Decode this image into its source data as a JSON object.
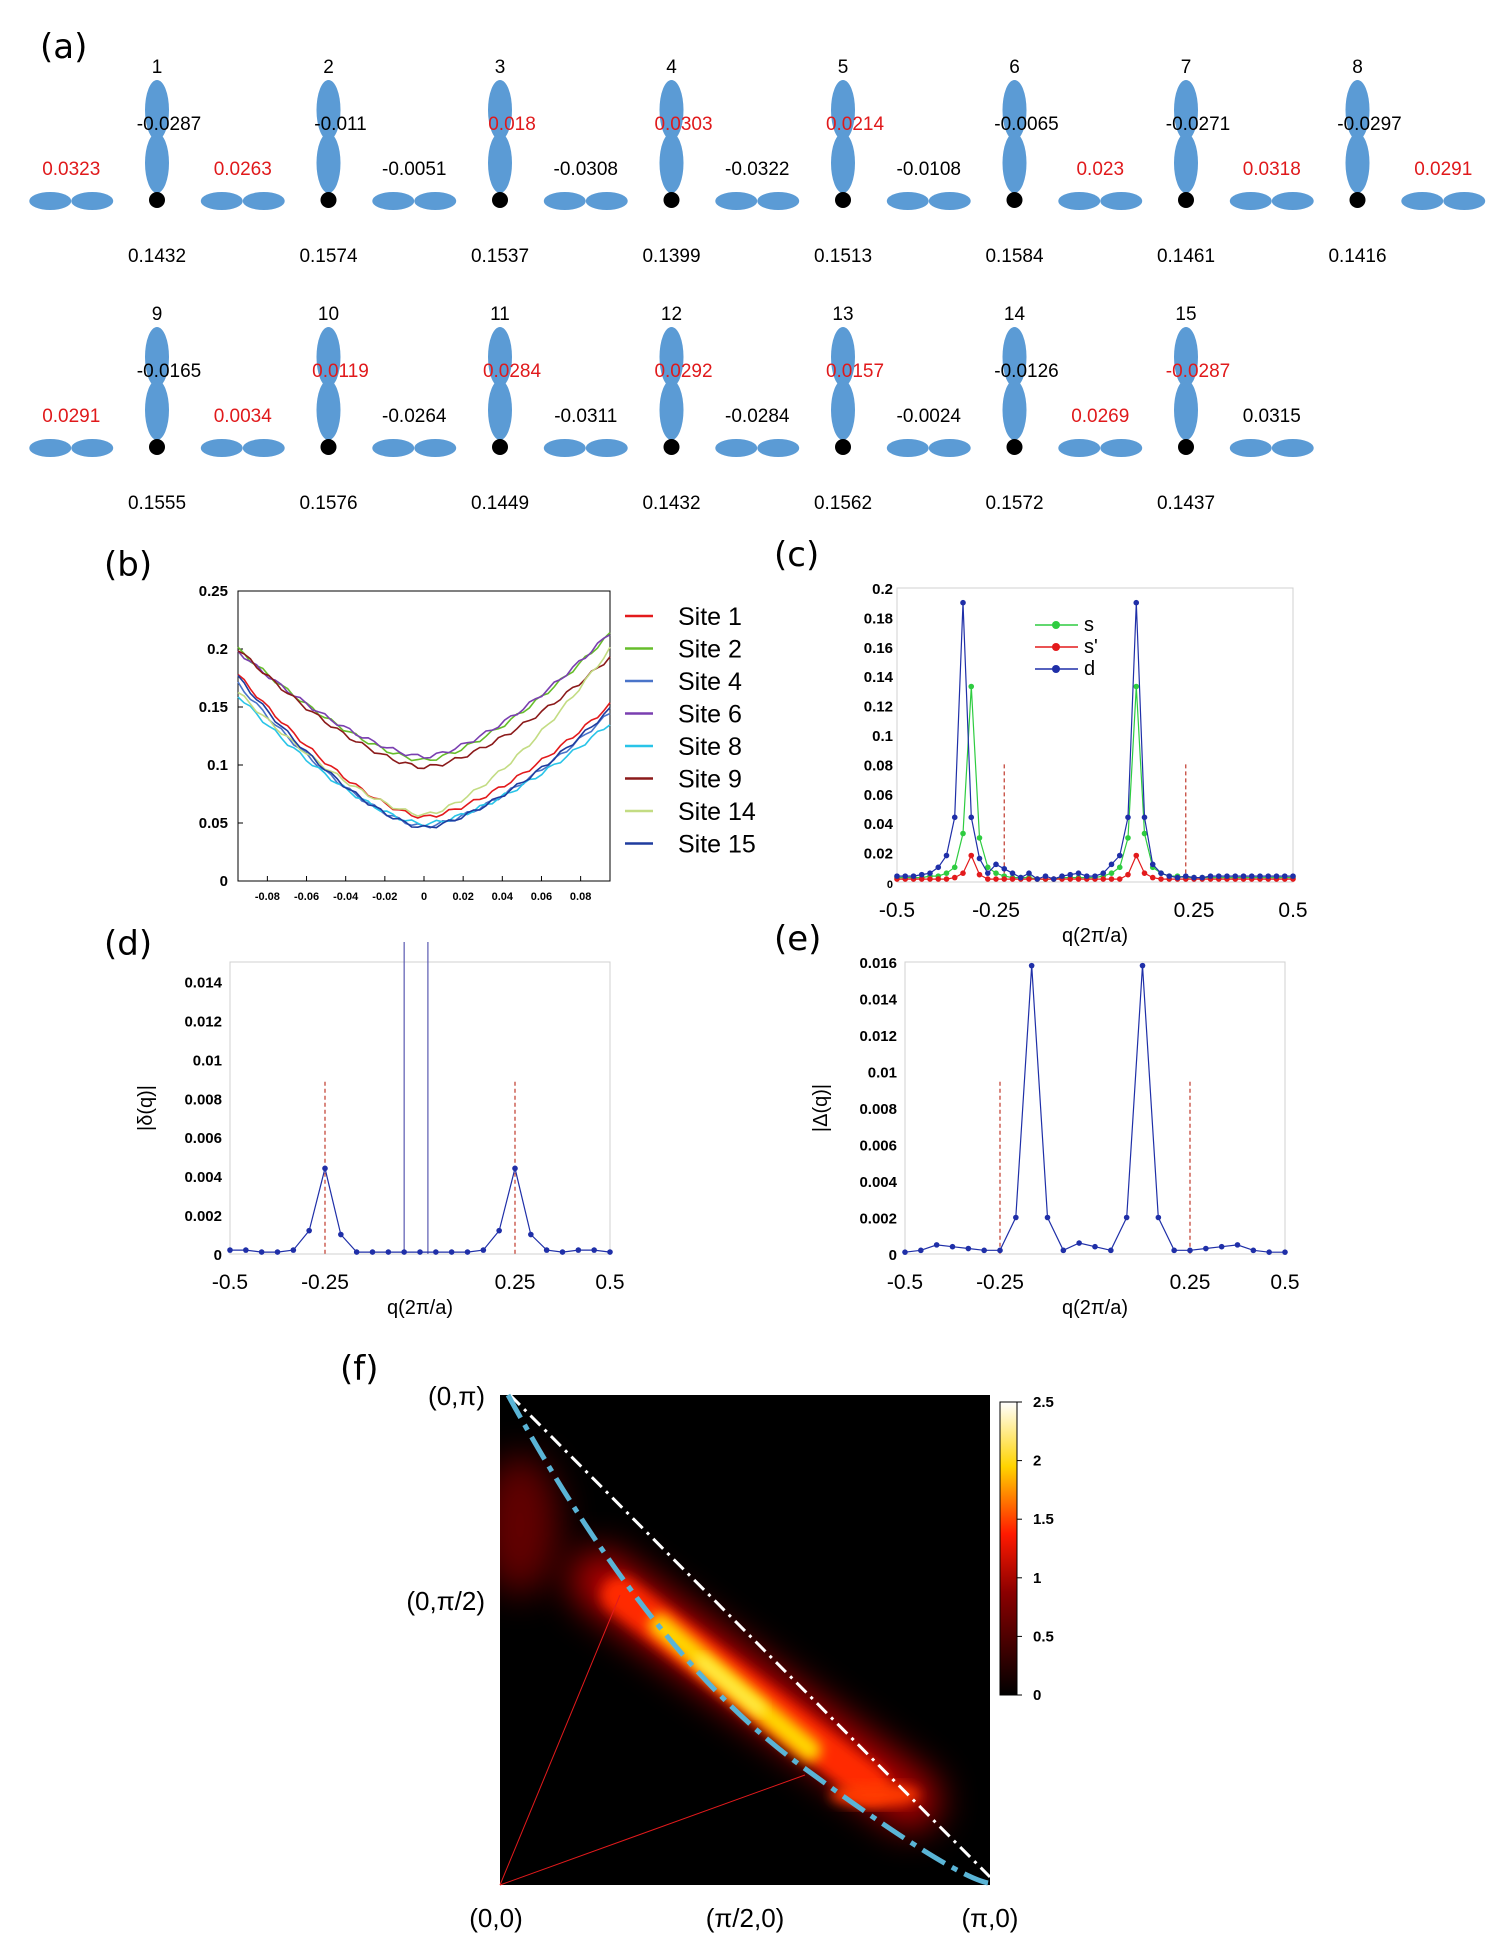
{
  "panel_labels": {
    "a": "(a)",
    "b": "(b)",
    "c": "(c)",
    "d": "(d)",
    "e": "(e)",
    "f": "(f)"
  },
  "panel_a": {
    "rows": [
      {
        "sites": [
          {
            "num": "1",
            "vert": "-0.0287",
            "vert_red": false,
            "onsite": "0.1432"
          },
          {
            "num": "2",
            "vert": "-0.011",
            "vert_red": false,
            "onsite": "0.1574"
          },
          {
            "num": "3",
            "vert": "0.018",
            "vert_red": true,
            "onsite": "0.1537"
          },
          {
            "num": "4",
            "vert": "0.0303",
            "vert_red": true,
            "onsite": "0.1399"
          },
          {
            "num": "5",
            "vert": "0.0214",
            "vert_red": true,
            "onsite": "0.1513"
          },
          {
            "num": "6",
            "vert": "-0.0065",
            "vert_red": false,
            "onsite": "0.1584"
          },
          {
            "num": "7",
            "vert": "-0.0271",
            "vert_red": false,
            "onsite": "0.1461"
          },
          {
            "num": "8",
            "vert": "-0.0297",
            "vert_red": false,
            "onsite": "0.1416"
          }
        ],
        "horiz": [
          {
            "v": "0.0323",
            "red": true
          },
          {
            "v": "0.0263",
            "red": true
          },
          {
            "v": "-0.0051",
            "red": false
          },
          {
            "v": "-0.0308",
            "red": false
          },
          {
            "v": "-0.0322",
            "red": false
          },
          {
            "v": "-0.0108",
            "red": false
          },
          {
            "v": "0.023",
            "red": true
          },
          {
            "v": "0.0318",
            "red": true
          },
          {
            "v": "0.0291",
            "red": true
          }
        ]
      },
      {
        "sites": [
          {
            "num": "9",
            "vert": "-0.0165",
            "vert_red": false,
            "onsite": "0.1555"
          },
          {
            "num": "10",
            "vert": "0.0119",
            "vert_red": true,
            "onsite": "0.1576"
          },
          {
            "num": "11",
            "vert": "0.0284",
            "vert_red": true,
            "onsite": "0.1449"
          },
          {
            "num": "12",
            "vert": "0.0292",
            "vert_red": true,
            "onsite": "0.1432"
          },
          {
            "num": "13",
            "vert": "0.0157",
            "vert_red": true,
            "onsite": "0.1562"
          },
          {
            "num": "14",
            "vert": "-0.0126",
            "vert_red": false,
            "onsite": "0.1572"
          },
          {
            "num": "15",
            "vert": "-0.0287",
            "vert_red": true,
            "onsite": "0.1437"
          }
        ],
        "horiz": [
          {
            "v": "0.0291",
            "red": true
          },
          {
            "v": "0.0034",
            "red": true
          },
          {
            "v": "-0.0264",
            "red": false
          },
          {
            "v": "-0.0311",
            "red": false
          },
          {
            "v": "-0.0284",
            "red": false
          },
          {
            "v": "-0.0024",
            "red": false
          },
          {
            "v": "0.0269",
            "red": true
          },
          {
            "v": "0.0315",
            "red": false
          }
        ]
      }
    ],
    "colors": {
      "orbital": "#5b9bd5",
      "red": "#e0191b",
      "atom": "#000000"
    }
  },
  "chart_data": [
    {
      "id": "b",
      "type": "line",
      "title": "",
      "xlabel": "",
      "ylabel": "",
      "xlim": [
        -0.095,
        0.095
      ],
      "ylim": [
        0,
        0.25
      ],
      "xticks": [
        "-0.08",
        "-0.06",
        "-0.04",
        "-0.02",
        "0",
        "0.02",
        "0.04",
        "0.06",
        "0.08"
      ],
      "yticks": [
        "0",
        "0.05",
        "0.1",
        "0.15",
        "0.2",
        "0.25"
      ],
      "series": [
        {
          "name": "Site 1",
          "color": "#e31a1c",
          "min": 0.055,
          "left": 0.178,
          "right": 0.152
        },
        {
          "name": "Site 2",
          "color": "#66bd2b",
          "min": 0.104,
          "left": 0.2,
          "right": 0.213
        },
        {
          "name": "Site 4",
          "color": "#4a74c9",
          "min": 0.047,
          "left": 0.17,
          "right": 0.145
        },
        {
          "name": "Site 6",
          "color": "#7a3fb0",
          "min": 0.107,
          "left": 0.198,
          "right": 0.214
        },
        {
          "name": "Site 8",
          "color": "#29c4e8",
          "min": 0.049,
          "left": 0.16,
          "right": 0.136
        },
        {
          "name": "Site 9",
          "color": "#8b1a1a",
          "min": 0.098,
          "left": 0.2,
          "right": 0.193
        },
        {
          "name": "Site 14",
          "color": "#c3dc83",
          "min": 0.057,
          "left": 0.163,
          "right": 0.2
        },
        {
          "name": "Site 15",
          "color": "#1f3c9e",
          "min": 0.046,
          "left": 0.176,
          "right": 0.148
        }
      ]
    },
    {
      "id": "c",
      "type": "line",
      "xlabel": "q(2π/a)",
      "ylabel": "",
      "xlim": [
        -0.5,
        0.5
      ],
      "ylim": [
        0,
        0.2
      ],
      "xticks": [
        "-0.5",
        "-0.25",
        "0.25",
        "0.5"
      ],
      "yticks": [
        "0",
        "0.02",
        "0.04",
        "0.06",
        "0.08",
        "0.1",
        "0.12",
        "0.14",
        "0.16",
        "0.18",
        "0.2"
      ],
      "reference_lines": [
        -0.2292,
        0.2292
      ],
      "x": [
        -0.5,
        -0.4792,
        -0.4583,
        -0.4375,
        -0.4167,
        -0.3958,
        -0.375,
        -0.3542,
        -0.3333,
        -0.3125,
        -0.2917,
        -0.2708,
        -0.25,
        -0.2292,
        -0.2083,
        -0.1875,
        -0.1667,
        -0.1458,
        -0.125,
        -0.1042,
        -0.0833,
        -0.0625,
        -0.0417,
        -0.0208,
        0,
        0.0208,
        0.0417,
        0.0625,
        0.0833,
        0.1042,
        0.125,
        0.1458,
        0.1667,
        0.1875,
        0.2083,
        0.2292,
        0.25,
        0.2708,
        0.2917,
        0.3125,
        0.3333,
        0.3542,
        0.375,
        0.3958,
        0.4167,
        0.4375,
        0.4583,
        0.4792,
        0.5
      ],
      "series": [
        {
          "name": "s",
          "color": "#2ecc40",
          "values": [
            0.003,
            0.003,
            0.003,
            0.003,
            0.004,
            0.004,
            0.006,
            0.01,
            0.033,
            0.133,
            0.03,
            0.01,
            0.006,
            0.004,
            0.003,
            0.003,
            0.003,
            0.002,
            0.002,
            0.002,
            0.003,
            0.003,
            0.003,
            0.003,
            0.003,
            0.004,
            0.006,
            0.01,
            0.03,
            0.133,
            0.033,
            0.01,
            0.006,
            0.004,
            0.004,
            0.003,
            0.003,
            0.003,
            0.003,
            0.003,
            0.003,
            0.003,
            0.003,
            0.003,
            0.003,
            0.003,
            0.003,
            0.003,
            0.003
          ]
        },
        {
          "name": "s'",
          "color": "#e31a1c",
          "values": [
            0.002,
            0.002,
            0.002,
            0.002,
            0.002,
            0.002,
            0.002,
            0.003,
            0.006,
            0.018,
            0.005,
            0.002,
            0.002,
            0.002,
            0.002,
            0.002,
            0.002,
            0.002,
            0.002,
            0.002,
            0.002,
            0.002,
            0.002,
            0.002,
            0.002,
            0.002,
            0.002,
            0.002,
            0.005,
            0.018,
            0.006,
            0.003,
            0.002,
            0.002,
            0.002,
            0.002,
            0.002,
            0.002,
            0.002,
            0.002,
            0.002,
            0.002,
            0.002,
            0.002,
            0.002,
            0.002,
            0.002,
            0.002,
            0.002
          ]
        },
        {
          "name": "d",
          "color": "#1f2fa8",
          "values": [
            0.004,
            0.004,
            0.004,
            0.005,
            0.006,
            0.01,
            0.018,
            0.044,
            0.19,
            0.044,
            0.016,
            0.006,
            0.012,
            0.009,
            0.006,
            0.003,
            0.006,
            0.002,
            0.004,
            0.002,
            0.004,
            0.005,
            0.006,
            0.004,
            0.004,
            0.006,
            0.012,
            0.018,
            0.044,
            0.19,
            0.044,
            0.012,
            0.006,
            0.004,
            0.003,
            0.004,
            0.003,
            0.003,
            0.004,
            0.004,
            0.004,
            0.004,
            0.004,
            0.004,
            0.004,
            0.004,
            0.004,
            0.004,
            0.004
          ]
        }
      ]
    },
    {
      "id": "d",
      "type": "line",
      "xlabel": "q(2π/a)",
      "ylabel": "|δ(q)|",
      "xlim": [
        -0.5,
        0.5
      ],
      "ylim": [
        0,
        0.015
      ],
      "xticks": [
        "-0.5",
        "-0.25",
        "0.25",
        "0.5"
      ],
      "yticks": [
        "0",
        "0.002",
        "0.004",
        "0.006",
        "0.008",
        "0.01",
        "0.012",
        "0.014"
      ],
      "reference_lines": [
        -0.25,
        0.25
      ],
      "vertical_lines": [
        -0.0417,
        0.0208
      ],
      "x": [
        -0.5,
        -0.4583,
        -0.4167,
        -0.375,
        -0.3333,
        -0.2917,
        -0.25,
        -0.2083,
        -0.1667,
        -0.125,
        -0.0833,
        -0.0417,
        0,
        0.0417,
        0.0833,
        0.125,
        0.1667,
        0.2083,
        0.25,
        0.2917,
        0.3333,
        0.375,
        0.4167,
        0.4583,
        0.5
      ],
      "values": [
        0.0002,
        0.0002,
        0.0001,
        0.0001,
        0.0002,
        0.0012,
        0.0044,
        0.001,
        0.0001,
        0.0001,
        0.0001,
        0.0001,
        0.0001,
        0.0001,
        0.0001,
        0.0001,
        0.0002,
        0.0012,
        0.0044,
        0.001,
        0.0002,
        0.0001,
        0.0002,
        0.0002,
        0.0001
      ],
      "color": "#1f2fa8"
    },
    {
      "id": "e",
      "type": "line",
      "xlabel": "q(2π/a)",
      "ylabel": "|Δ(q)|",
      "xlim": [
        -0.5,
        0.5
      ],
      "ylim": [
        0,
        0.016
      ],
      "xticks": [
        "-0.5",
        "-0.25",
        "0.25",
        "0.5"
      ],
      "yticks": [
        "0",
        "0.002",
        "0.004",
        "0.006",
        "0.008",
        "0.01",
        "0.012",
        "0.014",
        "0.016"
      ],
      "reference_lines": [
        -0.25,
        0.25
      ],
      "x": [
        -0.5,
        -0.4583,
        -0.4167,
        -0.375,
        -0.3333,
        -0.2917,
        -0.25,
        -0.2083,
        -0.1667,
        -0.125,
        -0.0833,
        -0.0417,
        0,
        0.0417,
        0.0833,
        0.125,
        0.1667,
        0.2083,
        0.25,
        0.2917,
        0.3333,
        0.375,
        0.4167,
        0.4583,
        0.5
      ],
      "values": [
        0.0001,
        0.0002,
        0.0005,
        0.0004,
        0.0003,
        0.0002,
        0.0002,
        0.002,
        0.0158,
        0.002,
        0.0002,
        0.0006,
        0.0004,
        0.0002,
        0.002,
        0.0158,
        0.002,
        0.0002,
        0.0002,
        0.0003,
        0.0004,
        0.0005,
        0.0002,
        0.0001,
        0.0001
      ],
      "color": "#1f2fa8"
    },
    {
      "id": "f",
      "type": "heatmap",
      "x_labels": [
        "(0,0)",
        "(π/2,0)",
        "(π,0)"
      ],
      "y_labels": [
        "(0,π)",
        "(0,π/2)"
      ],
      "colorbar": {
        "min": 0,
        "max": 2.5,
        "ticks": [
          "0",
          "0.5",
          "1",
          "1.5",
          "2",
          "2.5"
        ]
      },
      "description_band_peak": 2.5
    }
  ]
}
